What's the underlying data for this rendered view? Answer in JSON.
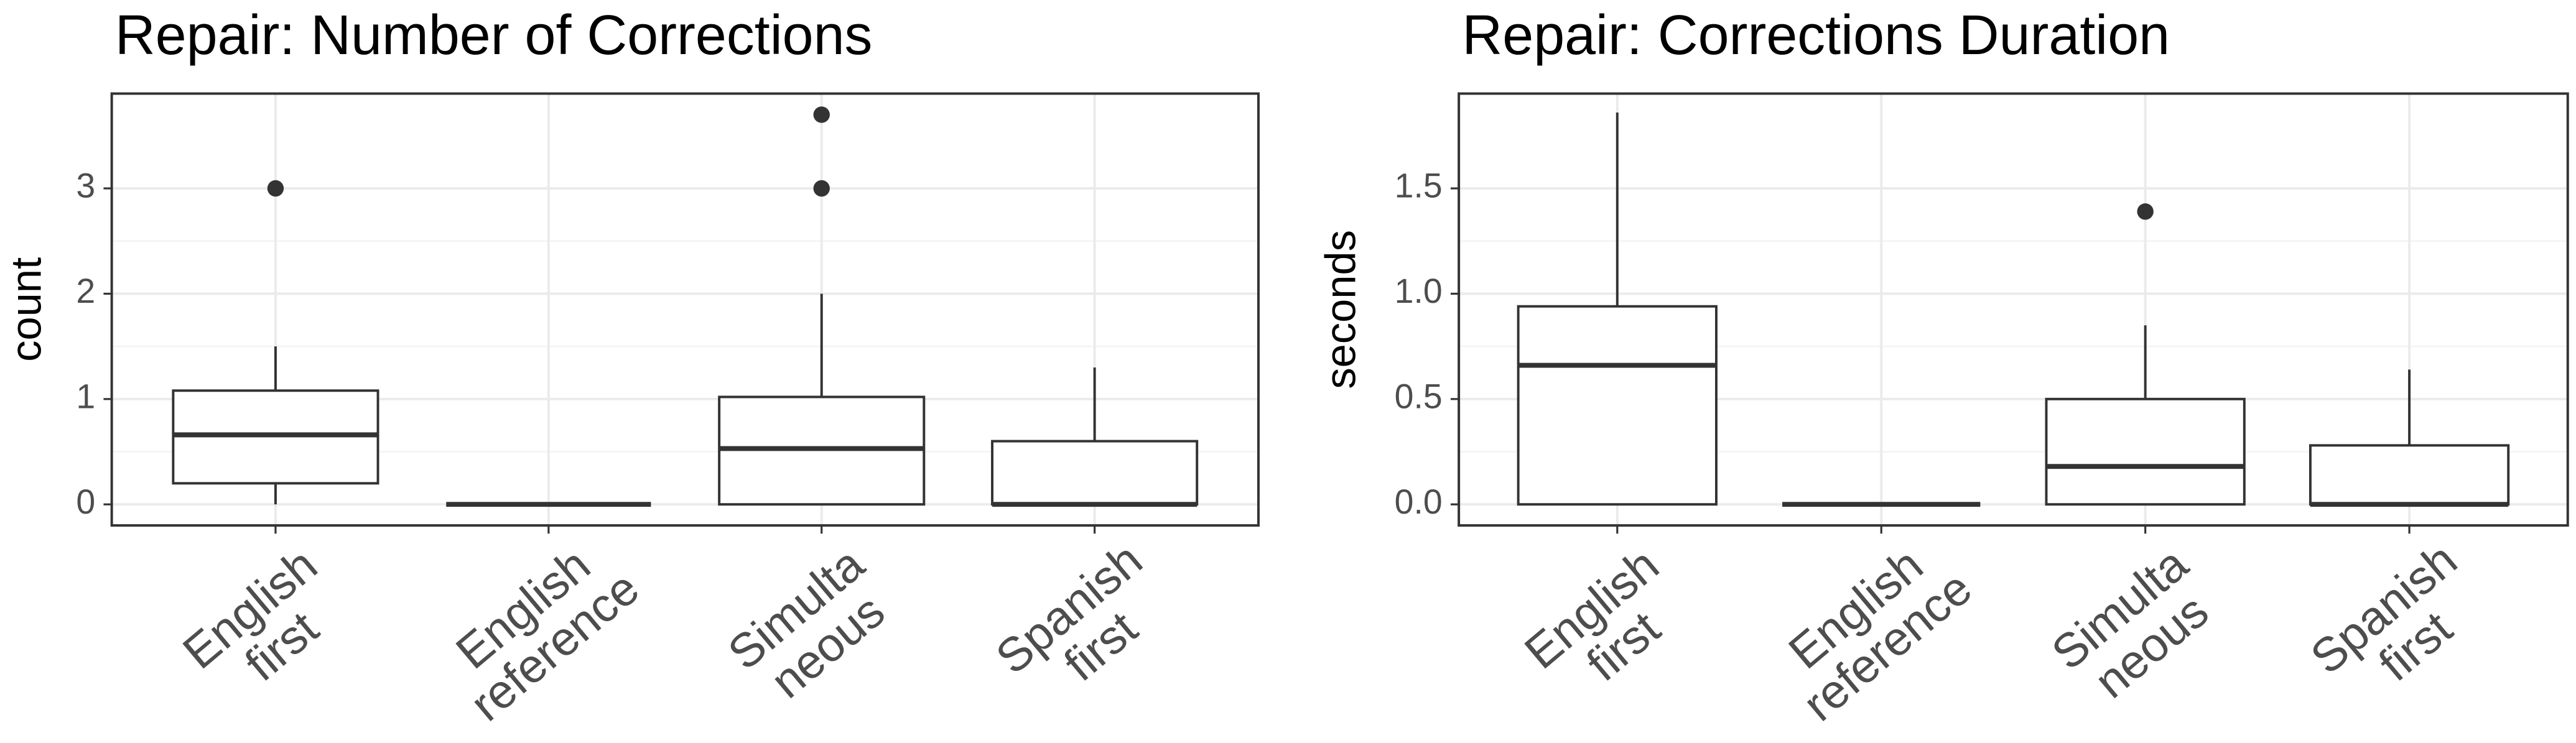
{
  "chart_data": [
    {
      "type": "box",
      "title": "Repair: Number of Corrections",
      "y_label": "count",
      "categories": [
        [
          "English",
          "first"
        ],
        [
          "English",
          "reference"
        ],
        [
          "Simulta",
          "neous"
        ],
        [
          "Spanish",
          "first"
        ]
      ],
      "whisker_low": [
        0,
        0,
        0,
        0
      ],
      "q1": [
        0.2,
        0,
        0,
        0
      ],
      "median": [
        0.66,
        0,
        0.53,
        0
      ],
      "q3": [
        1.08,
        0,
        1.02,
        0.6
      ],
      "whisker_high": [
        1.5,
        0,
        2,
        1.3
      ],
      "outliers": [
        [
          3
        ],
        [],
        [
          3,
          3.7
        ],
        []
      ],
      "ylim": [
        -0.2,
        3.9
      ],
      "yticks": [
        0,
        1,
        2,
        3
      ],
      "grid": true
    },
    {
      "type": "box",
      "title": "Repair: Corrections Duration",
      "y_label": "seconds",
      "categories": [
        [
          "English",
          "first"
        ],
        [
          "English",
          "reference"
        ],
        [
          "Simulta",
          "neous"
        ],
        [
          "Spanish",
          "first"
        ]
      ],
      "whisker_low": [
        0,
        0,
        0,
        0
      ],
      "q1": [
        0,
        0,
        0,
        0
      ],
      "median": [
        0.66,
        0,
        0.18,
        0
      ],
      "q3": [
        0.94,
        0,
        0.5,
        0.28
      ],
      "whisker_high": [
        1.86,
        0,
        0.85,
        0.64
      ],
      "outliers": [
        [],
        [],
        [
          1.39
        ],
        []
      ],
      "ylim": [
        -0.1,
        1.95
      ],
      "yticks": [
        {
          "value": 0,
          "label": "0.0"
        },
        {
          "value": 0.5,
          "label": "0.5"
        },
        {
          "value": 1,
          "label": "1.0"
        },
        {
          "value": 1.5,
          "label": "1.5"
        }
      ],
      "grid": true
    }
  ]
}
